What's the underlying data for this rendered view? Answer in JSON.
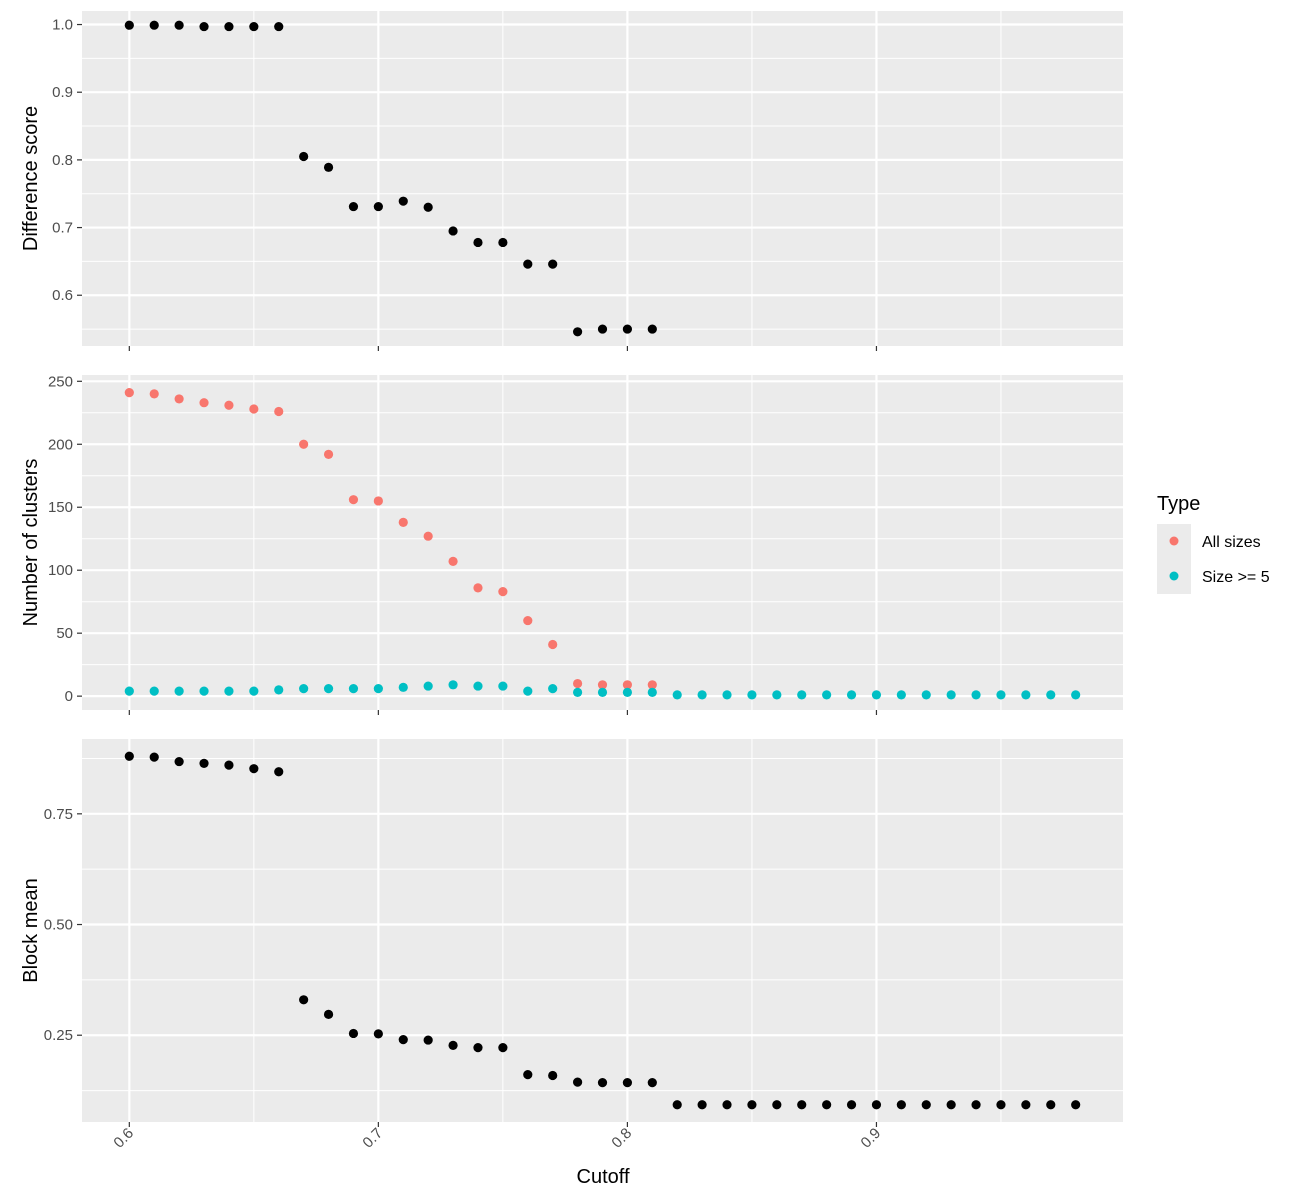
{
  "chart_data": {
    "type": "scatter",
    "xlabel": "Cutoff",
    "x_ticks": [
      0.6,
      0.7,
      0.8,
      0.9
    ],
    "xlim": [
      0.581,
      0.999
    ],
    "legend": {
      "title": "Type",
      "placement": "right",
      "entries": [
        {
          "name": "All sizes",
          "color": "#F8766D"
        },
        {
          "name": "Size >= 5",
          "color": "#00BFC4"
        }
      ]
    },
    "panels": [
      {
        "ylabel": "Difference score",
        "ylim": [
          0.525,
          1.02
        ],
        "y_ticks": [
          0.6,
          0.7,
          0.8,
          0.9,
          1.0
        ],
        "y_tick_labels": [
          "0.6",
          "0.7",
          "0.8",
          "0.9",
          "1.0"
        ],
        "series": [
          {
            "color": "#000000",
            "x": [
              0.6,
              0.61,
              0.62,
              0.63,
              0.64,
              0.65,
              0.66,
              0.67,
              0.68,
              0.69,
              0.7,
              0.71,
              0.72,
              0.73,
              0.74,
              0.75,
              0.76,
              0.77,
              0.78,
              0.79,
              0.8,
              0.81
            ],
            "y": [
              0.999,
              0.999,
              0.999,
              0.997,
              0.997,
              0.997,
              0.997,
              0.805,
              0.789,
              0.731,
              0.731,
              0.739,
              0.73,
              0.695,
              0.678,
              0.678,
              0.646,
              0.646,
              0.546,
              0.55,
              0.55,
              0.55
            ]
          }
        ]
      },
      {
        "ylabel": "Number of clusters",
        "ylim": [
          -11,
          255
        ],
        "y_ticks": [
          0,
          50,
          100,
          150,
          200,
          250
        ],
        "y_tick_labels": [
          "0",
          "50",
          "100",
          "150",
          "200",
          "250"
        ],
        "series": [
          {
            "name": "All sizes",
            "color": "#F8766D",
            "x": [
              0.6,
              0.61,
              0.62,
              0.63,
              0.64,
              0.65,
              0.66,
              0.67,
              0.68,
              0.69,
              0.7,
              0.71,
              0.72,
              0.73,
              0.74,
              0.75,
              0.76,
              0.77,
              0.78,
              0.79,
              0.8,
              0.81
            ],
            "y": [
              241,
              240,
              236,
              233,
              231,
              228,
              226,
              200,
              192,
              156,
              155,
              138,
              127,
              107,
              86,
              83,
              60,
              41,
              10,
              9,
              9,
              9
            ]
          },
          {
            "name": "Size >= 5",
            "color": "#00BFC4",
            "x": [
              0.6,
              0.61,
              0.62,
              0.63,
              0.64,
              0.65,
              0.66,
              0.67,
              0.68,
              0.69,
              0.7,
              0.71,
              0.72,
              0.73,
              0.74,
              0.75,
              0.76,
              0.77,
              0.78,
              0.79,
              0.8,
              0.81,
              0.82,
              0.83,
              0.84,
              0.85,
              0.86,
              0.87,
              0.88,
              0.89,
              0.9,
              0.91,
              0.92,
              0.93,
              0.94,
              0.95,
              0.96,
              0.97,
              0.98
            ],
            "y": [
              4,
              4,
              4,
              4,
              4,
              4,
              5,
              6,
              6,
              6,
              6,
              7,
              8,
              9,
              8,
              8,
              4,
              6,
              3,
              3,
              3,
              3,
              1,
              1,
              1,
              1,
              1,
              1,
              1,
              1,
              1,
              1,
              1,
              1,
              1,
              1,
              1,
              1,
              1
            ]
          }
        ]
      },
      {
        "ylabel": "Block mean",
        "ylim": [
          0.054,
          0.919
        ],
        "y_ticks": [
          0.25,
          0.5,
          0.75
        ],
        "y_tick_labels": [
          "0.25",
          "0.50",
          "0.75"
        ],
        "series": [
          {
            "color": "#000000",
            "x": [
              0.6,
              0.61,
              0.62,
              0.63,
              0.64,
              0.65,
              0.66,
              0.67,
              0.68,
              0.69,
              0.7,
              0.71,
              0.72,
              0.73,
              0.74,
              0.75,
              0.76,
              0.77,
              0.78,
              0.79,
              0.8,
              0.81,
              0.82,
              0.83,
              0.84,
              0.85,
              0.86,
              0.87,
              0.88,
              0.89,
              0.9,
              0.91,
              0.92,
              0.93,
              0.94,
              0.95,
              0.96,
              0.97,
              0.98
            ],
            "y": [
              0.88,
              0.878,
              0.868,
              0.864,
              0.86,
              0.852,
              0.845,
              0.33,
              0.297,
              0.254,
              0.253,
              0.24,
              0.239,
              0.227,
              0.222,
              0.222,
              0.161,
              0.159,
              0.144,
              0.143,
              0.143,
              0.143,
              0.093,
              0.093,
              0.093,
              0.093,
              0.093,
              0.093,
              0.093,
              0.093,
              0.093,
              0.093,
              0.093,
              0.093,
              0.093,
              0.093,
              0.093,
              0.093,
              0.093
            ]
          }
        ]
      }
    ]
  }
}
